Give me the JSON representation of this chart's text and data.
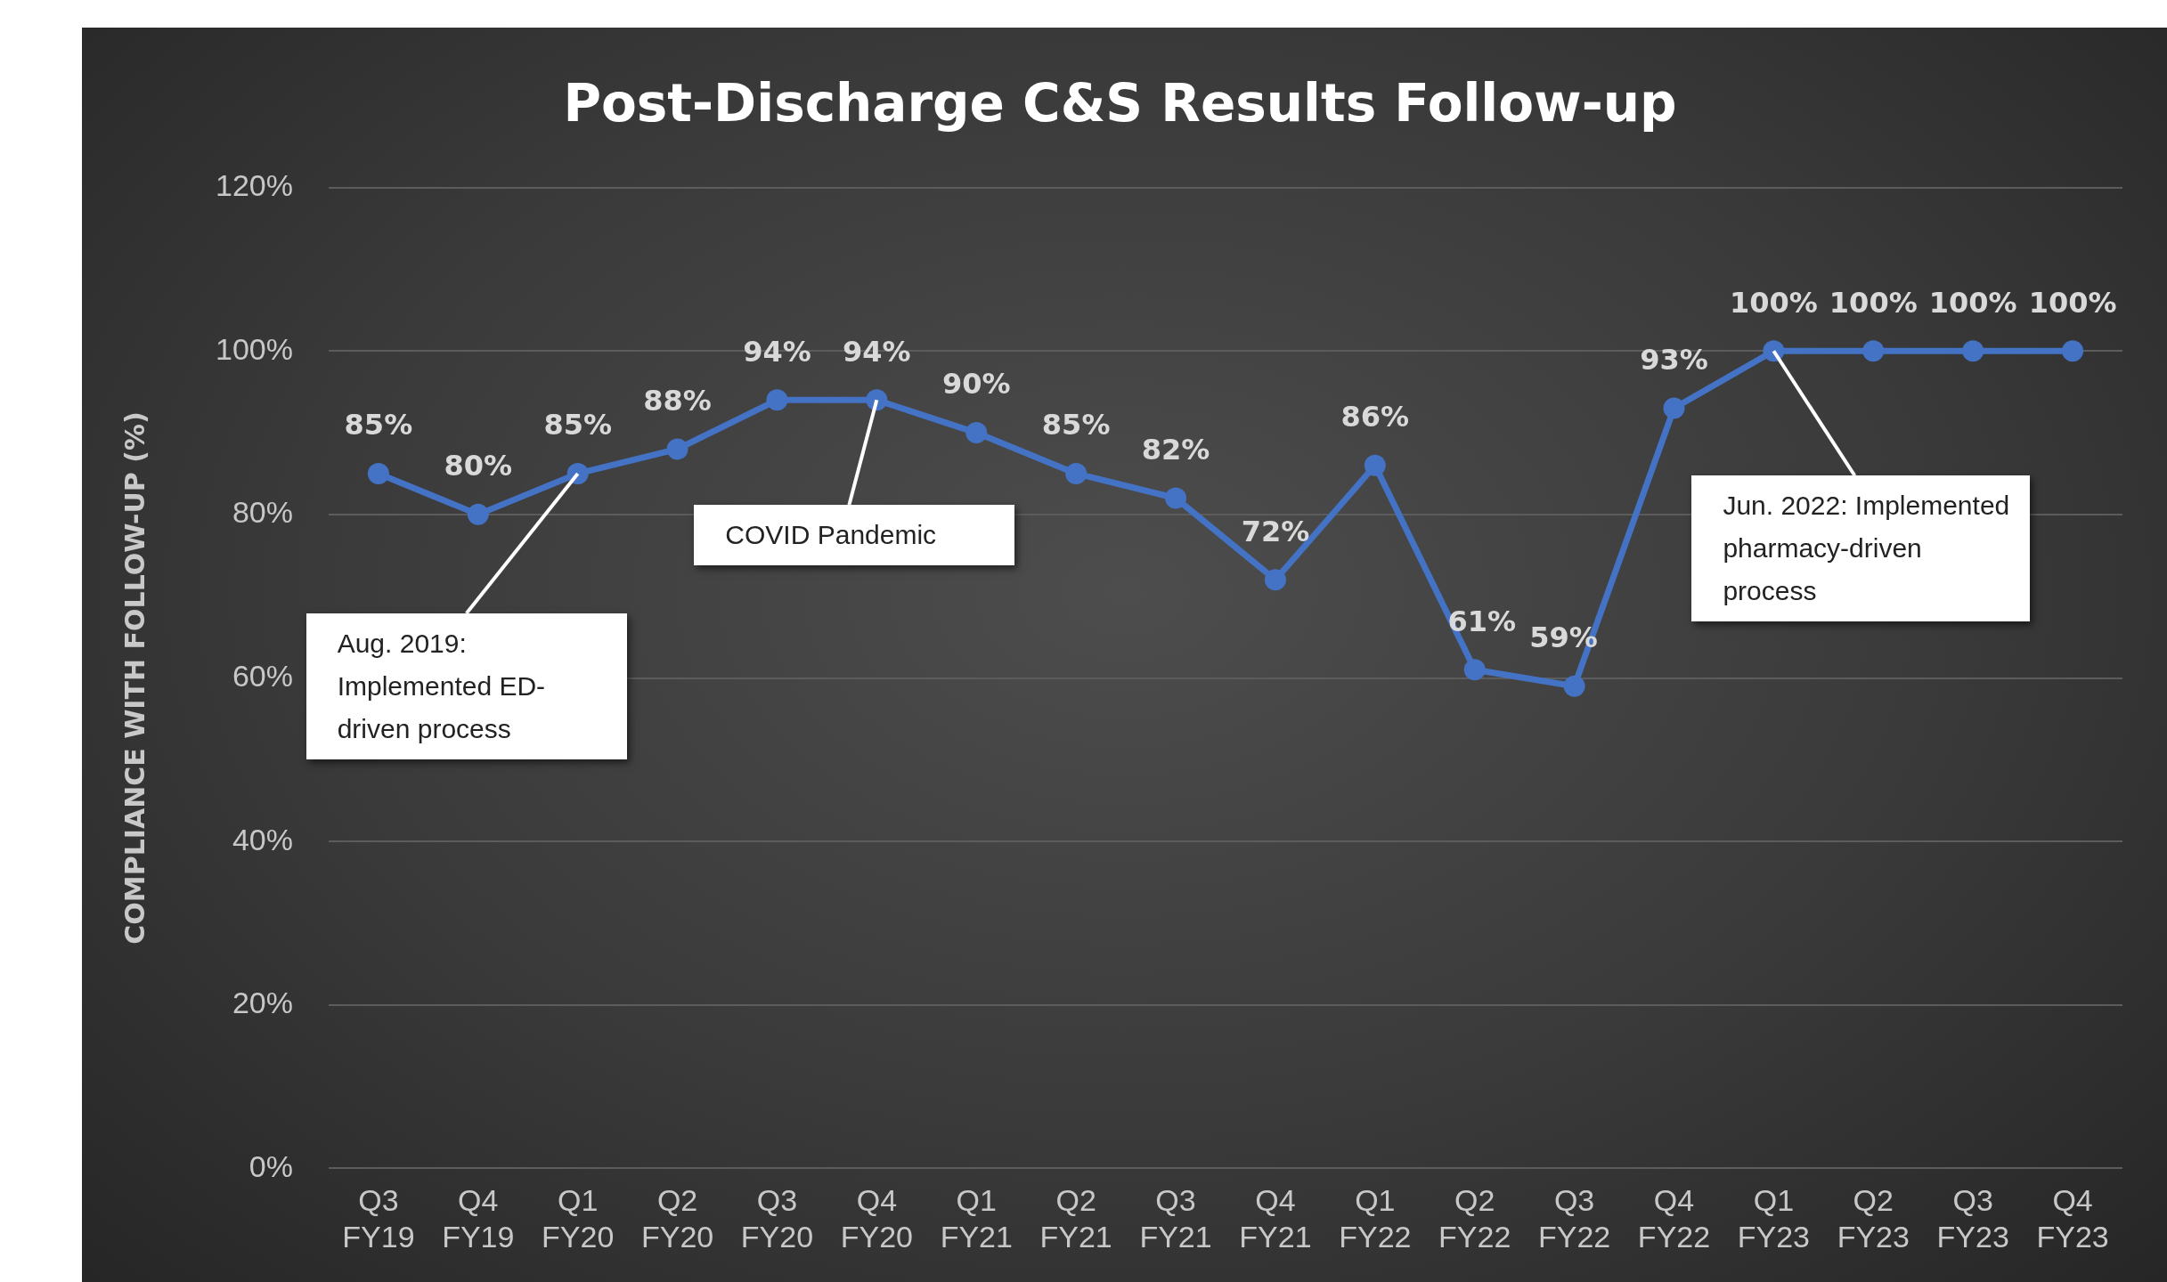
{
  "chart_data": {
    "type": "line",
    "title": "Post-Discharge C&S Results Follow-up",
    "ylabel": "COMPLIANCE WITH FOLLOW-UP (%)",
    "categories": [
      "Q3 FY19",
      "Q4 FY19",
      "Q1 FY20",
      "Q2 FY20",
      "Q3 FY20",
      "Q4 FY20",
      "Q1 FY21",
      "Q2 FY21",
      "Q3 FY21",
      "Q4 FY21",
      "Q1 FY22",
      "Q2 FY22",
      "Q3 FY22",
      "Q4 FY22",
      "Q1 FY23",
      "Q2 FY23",
      "Q3 FY23",
      "Q4 FY23"
    ],
    "series": [
      {
        "color": "#4472c4",
        "values": [
          85,
          80,
          85,
          88,
          94,
          94,
          90,
          85,
          82,
          72,
          86,
          61,
          59,
          93,
          100,
          100,
          100,
          100
        ],
        "value_labels": [
          "85%",
          "80%",
          "85%",
          "88%",
          "94%",
          "94%",
          "90%",
          "85%",
          "82%",
          "72%",
          "86%",
          "61%",
          "59%",
          "93%",
          "100%",
          "100%",
          "100%",
          "100%"
        ]
      }
    ],
    "ylim": [
      0,
      120
    ],
    "yticks": [
      {
        "value": 0,
        "label": "0%"
      },
      {
        "value": 20,
        "label": "20%"
      },
      {
        "value": 40,
        "label": "40%"
      },
      {
        "value": 60,
        "label": "60%"
      },
      {
        "value": 80,
        "label": "80%"
      },
      {
        "value": 100,
        "label": "100%"
      },
      {
        "value": 120,
        "label": "120%"
      }
    ],
    "grid": "y",
    "legend": false,
    "marker": "circle",
    "line_style": "solid",
    "annotations": [
      {
        "text": "Aug. 2019: Implemented ED-driven process",
        "x": "Q1 FY20",
        "y": 85
      },
      {
        "text": "COVID Pandemic",
        "x": "Q4 FY20",
        "y": 94
      },
      {
        "text": "Jun. 2022: Implemented pharmacy-driven process",
        "x": "Q1 FY23",
        "y": 100
      }
    ]
  }
}
